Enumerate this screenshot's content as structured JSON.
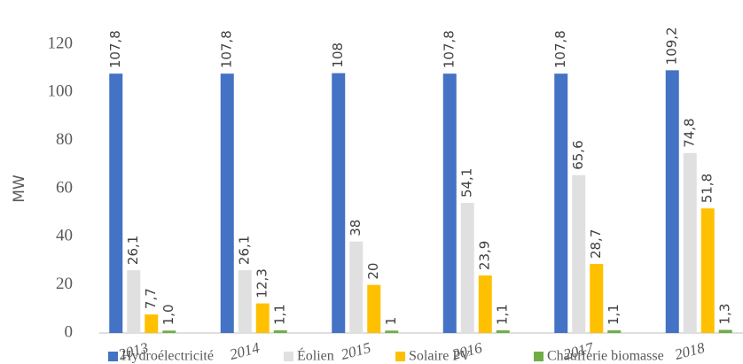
{
  "chart_data": {
    "type": "bar",
    "y_label": "MW",
    "categories": [
      "2013",
      "2014",
      "2015",
      "2016",
      "2017",
      "2018"
    ],
    "series": [
      {
        "name": "Hydroélectricité",
        "color": "#4472c4",
        "values": [
          107.8,
          107.8,
          108,
          107.8,
          107.8,
          109.2
        ],
        "value_labels": [
          "107,8",
          "107,8",
          "108",
          "107,8",
          "107,8",
          "109,2"
        ]
      },
      {
        "name": "Éolien",
        "color": "#e0e0e0",
        "values": [
          26.1,
          26.1,
          38,
          54.1,
          65.6,
          74.8
        ],
        "value_labels": [
          "26,1",
          "26,1",
          "38",
          "54,1",
          "65,6",
          "74,8"
        ]
      },
      {
        "name": "Solaire PV",
        "color": "#ffc000",
        "values": [
          7.7,
          12.3,
          20,
          23.9,
          28.7,
          51.8
        ],
        "value_labels": [
          "7,7",
          "12,3",
          "20",
          "23,9",
          "28,7",
          "51,8"
        ]
      },
      {
        "name": "Chaufferie biomasse",
        "color": "#70ad47",
        "values": [
          1,
          1.1,
          1,
          1.1,
          1.1,
          1.3
        ],
        "value_labels": [
          "1,0",
          "1,1",
          "1",
          "1,1",
          "1,1",
          "1,3"
        ]
      }
    ],
    "ylim": [
      0,
      120
    ],
    "yticks": [
      0,
      20,
      40,
      60,
      80,
      100,
      120
    ],
    "grid": false,
    "legend": "bottom"
  }
}
